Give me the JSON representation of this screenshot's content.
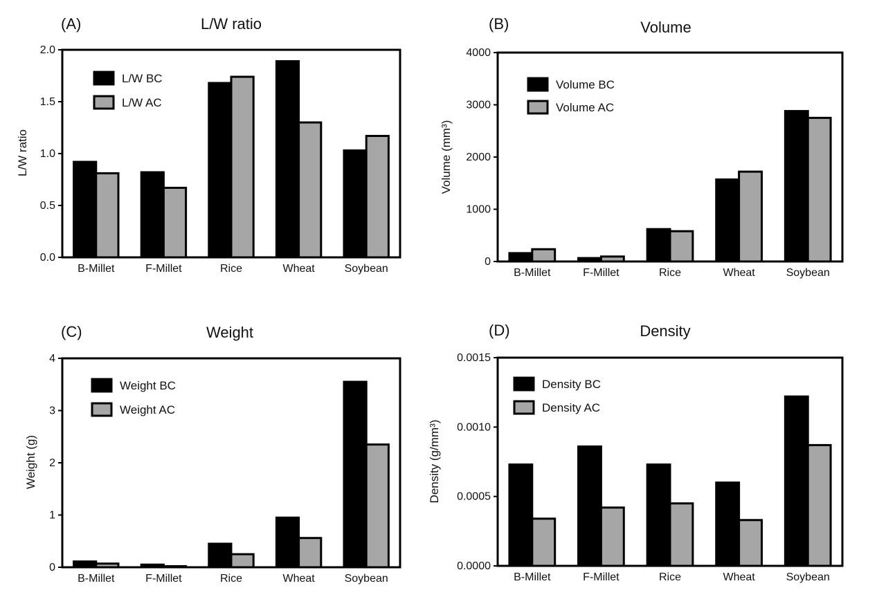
{
  "colors": {
    "bc": "#000000",
    "ac": "#a6a6a6",
    "stroke": "#000000"
  },
  "chart_data": [
    {
      "panel": "(A)",
      "type": "bar",
      "title": "L/W ratio",
      "xlabel": "",
      "ylabel": "L/W ratio",
      "categories": [
        "B-Millet",
        "F-Millet",
        "Rice",
        "Wheat",
        "Soybean"
      ],
      "series": [
        {
          "name": "L/W BC",
          "values": [
            0.92,
            0.82,
            1.68,
            1.89,
            1.03
          ]
        },
        {
          "name": "L/W AC",
          "values": [
            0.81,
            0.67,
            1.74,
            1.3,
            1.17
          ]
        }
      ],
      "ylim": [
        0,
        2.0
      ],
      "yticks": [
        "0.0",
        "0.5",
        "1.0",
        "1.5",
        "2.0"
      ],
      "legend_position": "top-left",
      "grid": false
    },
    {
      "panel": "(B)",
      "type": "bar",
      "title": "Volume",
      "xlabel": "",
      "ylabel": "Volume (mm³)",
      "categories": [
        "B-Millet",
        "F-Millet",
        "Rice",
        "Wheat",
        "Soybean"
      ],
      "series": [
        {
          "name": "Volume BC",
          "values": [
            160,
            65,
            620,
            1570,
            2880
          ]
        },
        {
          "name": "Volume AC",
          "values": [
            235,
            95,
            580,
            1720,
            2750
          ]
        }
      ],
      "ylim": [
        0,
        4000
      ],
      "yticks": [
        "0",
        "1000",
        "2000",
        "3000",
        "4000"
      ],
      "legend_position": "top-left",
      "grid": false
    },
    {
      "panel": "(C)",
      "type": "bar",
      "title": "Weight",
      "xlabel": "",
      "ylabel": "Weight (g)",
      "categories": [
        "B-Millet",
        "F-Millet",
        "Rice",
        "Wheat",
        "Soybean"
      ],
      "series": [
        {
          "name": "Weight BC",
          "values": [
            0.11,
            0.05,
            0.45,
            0.95,
            3.55
          ]
        },
        {
          "name": "Weight AC",
          "values": [
            0.07,
            0.02,
            0.25,
            0.56,
            2.35
          ]
        }
      ],
      "ylim": [
        0,
        4
      ],
      "yticks": [
        "0",
        "1",
        "2",
        "3",
        "4"
      ],
      "legend_position": "top-left",
      "grid": false
    },
    {
      "panel": "(D)",
      "type": "bar",
      "title": "Density",
      "xlabel": "",
      "ylabel": "Density (g/mm³)",
      "categories": [
        "B-Millet",
        "F-Millet",
        "Rice",
        "Wheat",
        "Soybean"
      ],
      "series": [
        {
          "name": "Density BC",
          "values": [
            0.00073,
            0.00086,
            0.00073,
            0.0006,
            0.00122
          ]
        },
        {
          "name": "Density AC",
          "values": [
            0.00034,
            0.00042,
            0.00045,
            0.00033,
            0.00087
          ]
        }
      ],
      "ylim": [
        0,
        0.0015
      ],
      "yticks": [
        "0.0000",
        "0.0005",
        "0.0010",
        "0.0015"
      ],
      "legend_position": "top-left",
      "grid": false
    }
  ]
}
